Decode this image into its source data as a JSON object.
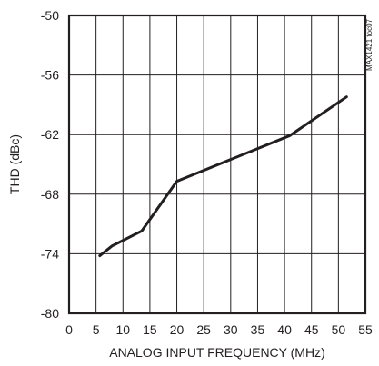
{
  "chart_data": {
    "type": "line",
    "title": "",
    "xlabel": "ANALOG INPUT FREQUENCY (MHz)",
    "ylabel": "THD (dBc)",
    "xlim": [
      0,
      55
    ],
    "ylim": [
      -80,
      -50
    ],
    "xticks": [
      0,
      5,
      10,
      15,
      20,
      25,
      30,
      35,
      40,
      45,
      50,
      55
    ],
    "yticks": [
      -50,
      -56,
      -62,
      -68,
      -74,
      -80
    ],
    "xtick_labels": [
      "0",
      "5",
      "10",
      "15",
      "20",
      "25",
      "30",
      "35",
      "40",
      "45",
      "50",
      "55"
    ],
    "ytick_labels": [
      "-50",
      "-56",
      "-62",
      "-68",
      "-74",
      "-80"
    ],
    "grid": true,
    "series": [
      {
        "x": [
          5.7,
          8,
          13.5,
          20,
          25,
          41,
          51.5
        ],
        "y": [
          -74.2,
          -73.2,
          -71.7,
          -66.7,
          -65.6,
          -62.1,
          -58.2
        ]
      }
    ],
    "annotations": [
      "MAX1421 toc07"
    ],
    "colors": {
      "line": "#231f20",
      "grid": "#231f20",
      "background": "#ffffff"
    }
  }
}
